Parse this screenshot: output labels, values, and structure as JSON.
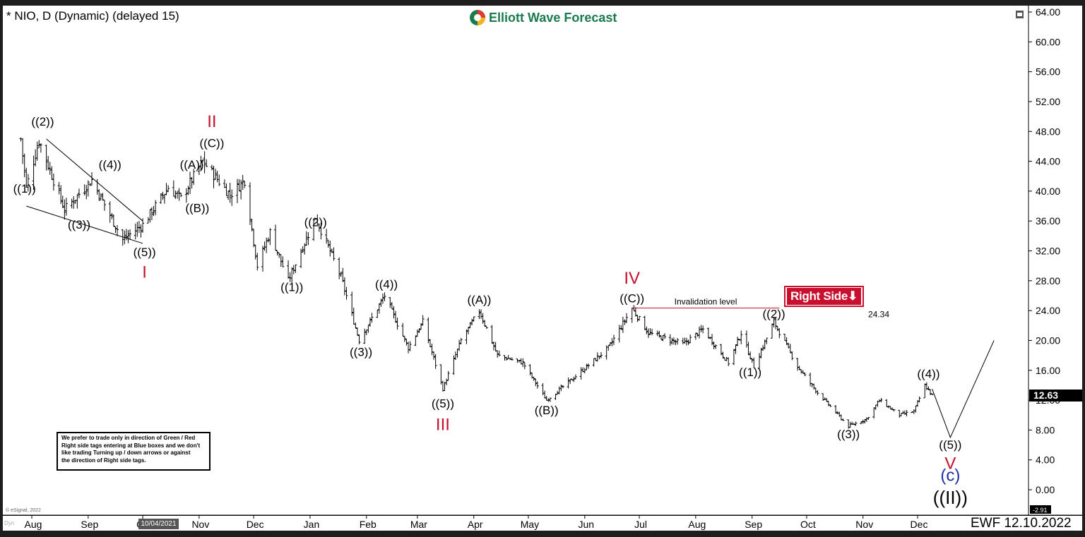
{
  "header": {
    "title": "* NIO, D (Dynamic) (delayed 15)",
    "brand": "Elliott Wave Forecast"
  },
  "footer": {
    "tag": "EWF 12.10.2022",
    "hover_date": "10/04/2021",
    "copyright": "© eSignal, 2022",
    "dyn": "Dyn"
  },
  "disclaimer": {
    "lines": [
      "We prefer to trade only in direction of Green / Red",
      "Right side tags entering at Blue boxes and we don't",
      "like trading Turning up / down arrows or against",
      "the direction of Right side tags."
    ]
  },
  "price_tag": {
    "last": "12.63",
    "low": "-2.91"
  },
  "right_side_tag": {
    "label": "Right Side",
    "arrow": "⬇",
    "color": "#c8102e"
  },
  "colors": {
    "red": "#c8102e",
    "blue": "#1f2fa8",
    "brand_green": "#1c7a4f"
  },
  "chart_data": {
    "type": "ohlc",
    "y_axis": {
      "ylim": [
        -2.91,
        64.0
      ],
      "ticks": [
        "64.00",
        "60.00",
        "56.00",
        "52.00",
        "48.00",
        "44.00",
        "40.00",
        "36.00",
        "32.00",
        "28.00",
        "24.00",
        "20.00",
        "16.00",
        "12.00",
        "8.00",
        "4.00",
        "0.00"
      ]
    },
    "x_axis": {
      "ticks": [
        "Aug",
        "Sep",
        "Oct",
        "Nov",
        "Dec",
        "Jan",
        "Feb",
        "Mar",
        "Apr",
        "May",
        "Jun",
        "Jul",
        "Aug",
        "Sep",
        "Oct",
        "Nov",
        "Dec"
      ]
    },
    "price_path": [
      [
        "2021-07-26",
        47.0
      ],
      [
        "2021-07-29",
        40.5
      ],
      [
        "2021-08-05",
        46.8
      ],
      [
        "2021-08-19",
        37.5
      ],
      [
        "2021-09-03",
        41.5
      ],
      [
        "2021-09-20",
        33.5
      ],
      [
        "2021-10-01",
        35.5
      ],
      [
        "2021-10-15",
        40.5
      ],
      [
        "2021-10-22",
        39.0
      ],
      [
        "2021-11-03",
        44.0
      ],
      [
        "2021-11-18",
        39.5
      ],
      [
        "2021-11-26",
        41.5
      ],
      [
        "2021-12-03",
        30.0
      ],
      [
        "2021-12-10",
        34.5
      ],
      [
        "2021-12-20",
        28.0
      ],
      [
        "2022-01-04",
        36.5
      ],
      [
        "2022-01-18",
        28.5
      ],
      [
        "2022-01-28",
        20.0
      ],
      [
        "2022-02-11",
        26.0
      ],
      [
        "2022-02-24",
        19.0
      ],
      [
        "2022-03-04",
        22.5
      ],
      [
        "2022-03-15",
        13.5
      ],
      [
        "2022-03-25",
        20.0
      ],
      [
        "2022-04-04",
        24.0
      ],
      [
        "2022-04-14",
        18.0
      ],
      [
        "2022-04-28",
        17.0
      ],
      [
        "2022-05-11",
        12.0
      ],
      [
        "2022-05-26",
        15.0
      ],
      [
        "2022-06-14",
        19.0
      ],
      [
        "2022-06-27",
        24.3
      ],
      [
        "2022-07-06",
        21.0
      ],
      [
        "2022-07-25",
        19.5
      ],
      [
        "2022-08-05",
        21.5
      ],
      [
        "2022-08-19",
        17.0
      ],
      [
        "2022-08-26",
        21.0
      ],
      [
        "2022-09-02",
        16.5
      ],
      [
        "2022-09-13",
        22.5
      ],
      [
        "2022-09-26",
        16.5
      ],
      [
        "2022-10-07",
        13.0
      ],
      [
        "2022-10-24",
        8.5
      ],
      [
        "2022-11-03",
        9.5
      ],
      [
        "2022-11-10",
        12.0
      ],
      [
        "2022-11-21",
        10.0
      ],
      [
        "2022-11-29",
        10.5
      ],
      [
        "2022-12-05",
        14.0
      ],
      [
        "2022-12-09",
        12.63
      ]
    ],
    "projection": [
      [
        "2022-12-09",
        13.5
      ],
      [
        "2022-12-19",
        7.0
      ],
      [
        "2023-01-12",
        20.0
      ]
    ],
    "wedge_lines": [
      [
        [
          "2021-08-09",
          47.0
        ],
        [
          "2021-10-01",
          36.0
        ]
      ],
      [
        [
          "2021-07-29",
          38.0
        ],
        [
          "2021-10-01",
          33.0
        ]
      ]
    ],
    "invalidation": {
      "label": "Invalidation level",
      "value": 24.34,
      "value_label": "24.34",
      "from": "2022-06-27",
      "to": "2022-09-16"
    },
    "annotations": [
      {
        "text": "((1))",
        "date": "2021-07-28",
        "price": 39.8,
        "color": "black",
        "size": 17
      },
      {
        "text": "((2))",
        "date": "2021-08-07",
        "price": 48.8,
        "color": "black",
        "size": 17
      },
      {
        "text": "((3))",
        "date": "2021-08-27",
        "price": 35.0,
        "color": "black",
        "size": 17
      },
      {
        "text": "((4))",
        "date": "2021-09-13",
        "price": 43.0,
        "color": "black",
        "size": 17
      },
      {
        "text": "((5))",
        "date": "2021-10-02",
        "price": 31.3,
        "color": "black",
        "size": 17
      },
      {
        "text": "I",
        "date": "2021-10-02",
        "price": 28.4,
        "color": "red",
        "size": 24
      },
      {
        "text": "((A))",
        "date": "2021-10-28",
        "price": 43.0,
        "color": "black",
        "size": 17
      },
      {
        "text": "((B))",
        "date": "2021-10-31",
        "price": 37.2,
        "color": "black",
        "size": 17
      },
      {
        "text": "((C))",
        "date": "2021-11-08",
        "price": 45.9,
        "color": "black",
        "size": 17
      },
      {
        "text": "II",
        "date": "2021-11-08",
        "price": 48.6,
        "color": "red",
        "size": 24
      },
      {
        "text": "((1))",
        "date": "2021-12-22",
        "price": 26.6,
        "color": "black",
        "size": 17
      },
      {
        "text": "((2))",
        "date": "2022-01-04",
        "price": 35.3,
        "color": "black",
        "size": 17
      },
      {
        "text": "((3))",
        "date": "2022-01-29",
        "price": 17.9,
        "color": "black",
        "size": 17
      },
      {
        "text": "((4))",
        "date": "2022-02-12",
        "price": 27.0,
        "color": "black",
        "size": 17
      },
      {
        "text": "((5))",
        "date": "2022-03-15",
        "price": 11.0,
        "color": "black",
        "size": 17
      },
      {
        "text": "III",
        "date": "2022-03-15",
        "price": 8.0,
        "color": "red",
        "size": 24
      },
      {
        "text": "((A))",
        "date": "2022-04-04",
        "price": 24.9,
        "color": "black",
        "size": 17
      },
      {
        "text": "((B))",
        "date": "2022-05-11",
        "price": 10.1,
        "color": "black",
        "size": 17
      },
      {
        "text": "((C))",
        "date": "2022-06-27",
        "price": 25.1,
        "color": "black",
        "size": 17
      },
      {
        "text": "IV",
        "date": "2022-06-27",
        "price": 27.6,
        "color": "red",
        "size": 24
      },
      {
        "text": "((1))",
        "date": "2022-08-31",
        "price": 15.2,
        "color": "black",
        "size": 17
      },
      {
        "text": "((2))",
        "date": "2022-09-13",
        "price": 23.0,
        "color": "black",
        "size": 17
      },
      {
        "text": "((3))",
        "date": "2022-10-24",
        "price": 6.9,
        "color": "black",
        "size": 17
      },
      {
        "text": "((4))",
        "date": "2022-12-07",
        "price": 15.0,
        "color": "black",
        "size": 17
      },
      {
        "text": "((5))",
        "date": "2022-12-19",
        "price": 5.5,
        "color": "black",
        "size": 17
      },
      {
        "text": "V",
        "date": "2022-12-19",
        "price": 2.8,
        "color": "red",
        "size": 24
      },
      {
        "text": "(c)",
        "date": "2022-12-19",
        "price": 1.2,
        "color": "blue",
        "size": 24
      },
      {
        "text": "((II))",
        "date": "2022-12-19",
        "price": -1.9,
        "color": "black",
        "size": 26
      }
    ]
  }
}
